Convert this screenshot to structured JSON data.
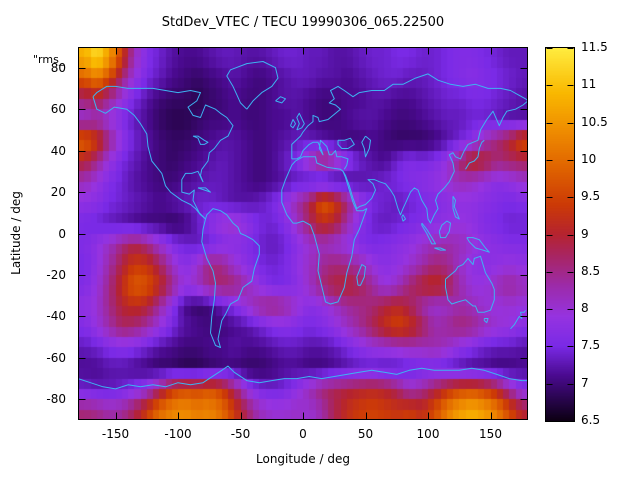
{
  "title": "StdDev_VTEC / TECU 19990306_065.22500",
  "key_label": "\"rms_",
  "background": "#ffffff",
  "axes": {
    "x": {
      "label": "Longitude / deg",
      "ticks": [
        -150,
        -100,
        -50,
        0,
        50,
        100,
        150
      ],
      "range": [
        -180,
        180
      ]
    },
    "y": {
      "label": "Latitude / deg",
      "ticks": [
        80,
        60,
        40,
        20,
        0,
        -20,
        -40,
        -60,
        -80
      ],
      "range": [
        -90,
        90
      ]
    }
  },
  "colorbar": {
    "ticks": [
      "6.5",
      "7",
      "7.5",
      "8",
      "8.5",
      "9",
      "9.5",
      "10",
      "10.5",
      "11",
      "11.5"
    ],
    "min": 6.5,
    "max": 11.5
  },
  "overlay": {
    "coastline_color": "#3db4f2"
  },
  "chart_data": {
    "type": "heatmap",
    "title": "StdDev_VTEC / TECU 19990306_065.22500",
    "xlabel": "Longitude / deg",
    "ylabel": "Latitude / deg",
    "x_range": [
      -180,
      180
    ],
    "y_range": [
      -90,
      90
    ],
    "value_range": [
      6.5,
      11.5
    ],
    "units": "TECU",
    "overlays": [
      "world-coastlines"
    ],
    "grid_lon_start": -175,
    "grid_lon_step": 10,
    "grid_lat_start": 85,
    "grid_lat_step": -10,
    "grid": [
      [
        10.8,
        11.3,
        10.6,
        9.4,
        8.2,
        7.6,
        7.4,
        7.2,
        7.1,
        7.1,
        7.2,
        7.3,
        7.3,
        7.2,
        7.2,
        7.3,
        7.4,
        7.4,
        7.3,
        7.3,
        7.2,
        7.2,
        7.3,
        7.4,
        7.4,
        7.5,
        7.5,
        7.4,
        7.4,
        7.5,
        7.6,
        7.6,
        7.5,
        7.4,
        7.3,
        7.3
      ],
      [
        9.8,
        10.2,
        9.6,
        8.6,
        7.9,
        7.5,
        7.3,
        7.1,
        7.0,
        6.9,
        7.0,
        7.1,
        7.2,
        7.1,
        7.0,
        7.1,
        7.2,
        7.3,
        7.3,
        7.2,
        7.2,
        7.1,
        7.2,
        7.3,
        7.4,
        7.4,
        7.3,
        7.3,
        7.4,
        7.5,
        7.6,
        7.7,
        7.6,
        7.5,
        7.4,
        7.3
      ],
      [
        8.6,
        8.9,
        8.4,
        7.9,
        7.5,
        7.2,
        7.0,
        6.9,
        6.9,
        6.8,
        6.9,
        7.0,
        7.1,
        7.0,
        7.0,
        7.1,
        7.2,
        7.2,
        7.1,
        7.0,
        7.0,
        7.1,
        7.1,
        7.2,
        7.2,
        7.1,
        7.1,
        7.2,
        7.3,
        7.4,
        7.4,
        7.5,
        7.5,
        7.4,
        7.3,
        7.2
      ],
      [
        8.0,
        8.2,
        7.9,
        7.6,
        7.3,
        7.1,
        6.9,
        6.8,
        6.8,
        6.9,
        7.0,
        7.0,
        7.1,
        7.0,
        7.0,
        7.1,
        7.1,
        7.2,
        7.1,
        7.0,
        7.0,
        7.1,
        7.2,
        7.2,
        7.1,
        7.0,
        7.0,
        7.1,
        7.2,
        7.3,
        7.3,
        7.4,
        7.4,
        7.3,
        7.2,
        7.2
      ],
      [
        9.9,
        9.4,
        8.5,
        7.8,
        7.4,
        7.2,
        7.0,
        6.9,
        6.9,
        7.0,
        7.1,
        7.2,
        7.2,
        7.1,
        7.0,
        7.1,
        7.2,
        7.3,
        7.3,
        7.2,
        7.1,
        7.0,
        7.0,
        7.1,
        7.0,
        6.9,
        6.9,
        6.9,
        7.0,
        7.2,
        7.4,
        7.7,
        8.2,
        8.6,
        9.0,
        9.6
      ],
      [
        9.0,
        8.5,
        7.9,
        7.5,
        7.3,
        7.1,
        7.0,
        6.9,
        7.0,
        7.1,
        7.2,
        7.3,
        7.2,
        7.1,
        7.0,
        7.1,
        7.3,
        7.6,
        8.2,
        8.8,
        8.4,
        7.8,
        7.4,
        7.2,
        7.1,
        7.4,
        7.6,
        7.5,
        7.6,
        7.9,
        8.6,
        9.2,
        9.0,
        8.6,
        8.7,
        8.8
      ],
      [
        8.2,
        7.9,
        7.6,
        7.4,
        7.2,
        7.1,
        7.0,
        7.0,
        7.1,
        7.2,
        7.3,
        7.3,
        7.2,
        7.1,
        7.0,
        7.1,
        7.2,
        7.3,
        7.2,
        7.1,
        7.0,
        7.1,
        7.2,
        7.3,
        7.4,
        7.5,
        7.6,
        7.7,
        7.8,
        8.0,
        8.2,
        8.1,
        7.9,
        7.7,
        7.8,
        8.0
      ],
      [
        7.8,
        7.7,
        7.5,
        7.4,
        7.3,
        7.2,
        7.1,
        7.2,
        7.3,
        7.4,
        7.4,
        7.3,
        7.2,
        7.2,
        7.3,
        7.5,
        7.8,
        8.3,
        8.8,
        9.8,
        9.5,
        8.6,
        7.9,
        7.5,
        7.4,
        7.3,
        7.4,
        7.5,
        7.6,
        7.7,
        7.8,
        7.8,
        7.7,
        7.6,
        7.5,
        7.6
      ],
      [
        7.5,
        7.4,
        7.3,
        7.2,
        7.1,
        7.0,
        7.0,
        6.9,
        7.0,
        7.3,
        7.7,
        8.0,
        8.1,
        7.8,
        7.5,
        7.4,
        7.6,
        8.1,
        8.7,
        9.2,
        9.0,
        8.3,
        7.7,
        7.4,
        7.3,
        7.4,
        7.5,
        7.6,
        7.7,
        7.8,
        7.9,
        7.8,
        7.6,
        7.5,
        7.4,
        7.4
      ],
      [
        7.6,
        7.8,
        8.1,
        8.5,
        8.8,
        8.5,
        8.0,
        7.6,
        7.4,
        7.3,
        7.4,
        7.6,
        7.7,
        7.6,
        7.4,
        7.3,
        7.4,
        7.7,
        8.0,
        8.2,
        8.0,
        7.8,
        7.6,
        7.5,
        7.6,
        7.7,
        7.8,
        8.0,
        8.2,
        8.3,
        8.2,
        8.0,
        7.8,
        7.7,
        7.6,
        7.6
      ],
      [
        7.5,
        7.8,
        8.3,
        8.9,
        9.4,
        9.3,
        8.8,
        8.1,
        7.7,
        8.0,
        8.6,
        8.5,
        8.0,
        7.7,
        7.5,
        7.4,
        7.5,
        7.8,
        8.1,
        8.4,
        8.6,
        8.5,
        8.3,
        7.9,
        7.7,
        7.8,
        8.0,
        8.3,
        8.6,
        8.5,
        8.1,
        7.8,
        7.7,
        7.8,
        7.9,
        7.8
      ],
      [
        7.6,
        7.9,
        8.5,
        9.2,
        9.8,
        9.7,
        9.2,
        8.5,
        7.9,
        8.1,
        8.5,
        8.7,
        8.6,
        8.2,
        7.8,
        7.5,
        7.5,
        7.7,
        8.1,
        8.6,
        8.9,
        9.0,
        8.8,
        8.4,
        7.9,
        8.1,
        8.6,
        9.0,
        9.2,
        8.9,
        8.3,
        7.9,
        7.9,
        8.2,
        8.4,
        8.2
      ],
      [
        7.8,
        8.0,
        8.5,
        9.0,
        9.2,
        9.0,
        8.4,
        7.7,
        7.1,
        6.9,
        7.0,
        7.3,
        7.6,
        8.0,
        8.4,
        8.6,
        8.4,
        8.0,
        7.7,
        7.8,
        8.1,
        8.4,
        8.5,
        8.6,
        8.9,
        9.1,
        8.8,
        8.3,
        8.0,
        8.1,
        8.3,
        8.2,
        8.0,
        7.9,
        8.0,
        7.9
      ],
      [
        7.6,
        7.9,
        8.3,
        8.7,
        8.6,
        8.3,
        7.9,
        7.5,
        7.2,
        7.1,
        7.0,
        7.0,
        7.1,
        7.2,
        7.4,
        7.6,
        7.7,
        7.6,
        7.5,
        7.6,
        7.8,
        8.1,
        8.4,
        8.8,
        9.2,
        9.5,
        9.3,
        8.8,
        8.3,
        8.4,
        8.6,
        8.5,
        8.2,
        8.0,
        7.9,
        7.7
      ],
      [
        7.3,
        7.4,
        7.6,
        7.7,
        7.6,
        7.4,
        7.2,
        7.1,
        7.0,
        7.0,
        7.1,
        7.1,
        7.2,
        7.1,
        7.1,
        7.2,
        7.3,
        7.3,
        7.2,
        7.2,
        7.3,
        7.5,
        7.7,
        7.9,
        8.0,
        8.1,
        8.2,
        8.2,
        8.3,
        8.1,
        7.8,
        7.6,
        7.4,
        7.3,
        7.3,
        7.2
      ],
      [
        7.1,
        7.1,
        7.2,
        7.2,
        7.1,
        7.0,
        6.9,
        6.9,
        6.8,
        6.8,
        6.9,
        7.0,
        7.0,
        6.9,
        6.9,
        7.0,
        7.1,
        7.1,
        7.0,
        7.0,
        7.1,
        7.2,
        7.3,
        7.3,
        7.2,
        7.2,
        7.3,
        7.4,
        7.4,
        7.3,
        7.2,
        7.1,
        7.1,
        7.0,
        7.0,
        7.1
      ],
      [
        7.4,
        7.3,
        7.3,
        7.4,
        7.6,
        7.9,
        8.6,
        9.3,
        9.6,
        9.5,
        9.7,
        9.4,
        8.7,
        7.9,
        7.5,
        7.4,
        7.5,
        7.8,
        8.2,
        8.6,
        8.8,
        8.9,
        9.0,
        9.1,
        9.0,
        8.7,
        8.2,
        8.4,
        8.8,
        9.2,
        9.5,
        9.6,
        9.4,
        9.0,
        8.3,
        7.7
      ],
      [
        8.6,
        8.5,
        8.3,
        8.4,
        8.8,
        9.4,
        10.0,
        10.3,
        10.4,
        10.2,
        10.3,
        10.0,
        9.4,
        8.7,
        8.2,
        8.0,
        8.0,
        8.1,
        8.0,
        8.3,
        8.8,
        9.2,
        9.4,
        9.5,
        9.4,
        9.3,
        9.4,
        9.2,
        9.6,
        10.2,
        10.6,
        10.8,
        10.6,
        10.2,
        9.6,
        9.0
      ]
    ],
    "palette": [
      {
        "value": 6.5,
        "color": "#0d0014"
      },
      {
        "value": 6.8,
        "color": "#2a0550"
      },
      {
        "value": 7.1,
        "color": "#4a0a8f"
      },
      {
        "value": 7.5,
        "color": "#7a2ae6"
      },
      {
        "value": 7.9,
        "color": "#9633e0"
      },
      {
        "value": 8.3,
        "color": "#9c2bab"
      },
      {
        "value": 8.7,
        "color": "#a82565"
      },
      {
        "value": 9.0,
        "color": "#b52330"
      },
      {
        "value": 9.4,
        "color": "#cc3a06"
      },
      {
        "value": 9.9,
        "color": "#e06400"
      },
      {
        "value": 10.4,
        "color": "#ef8d00"
      },
      {
        "value": 10.9,
        "color": "#f9b800"
      },
      {
        "value": 11.5,
        "color": "#ffec3f"
      }
    ]
  }
}
